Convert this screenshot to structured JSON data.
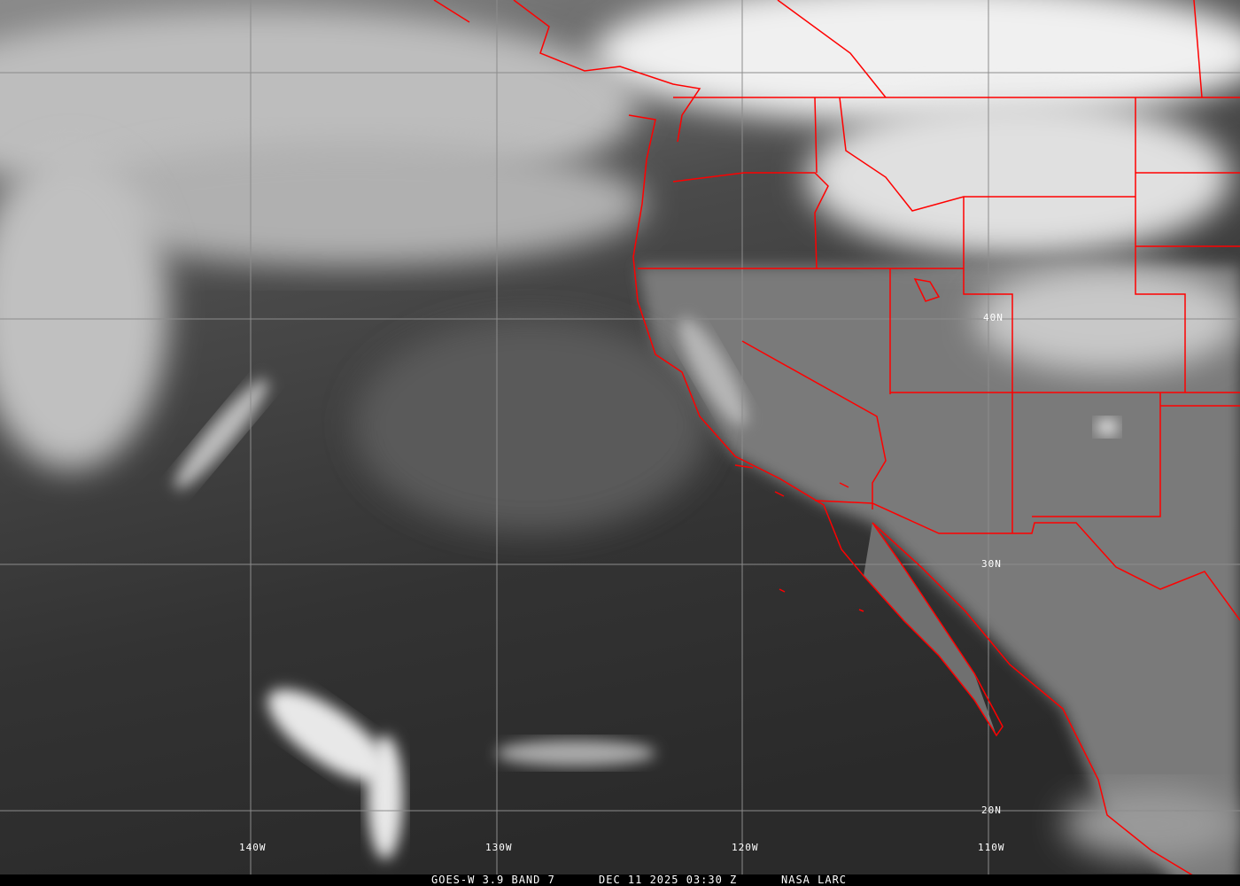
{
  "image": {
    "satellite": "GOES-W 3.9 BAND 7",
    "datetime": "DEC 11 2025 03:30 Z",
    "source": "NASA LARC"
  },
  "grid": {
    "latitude_labels": [
      "40N",
      "30N",
      "20N"
    ],
    "longitude_labels": [
      "140W",
      "130W",
      "120W",
      "110W"
    ]
  },
  "colors": {
    "boundaries": "#ff0000",
    "grid": "#8c8c8c",
    "caption_bg": "#000000",
    "caption_text": "#ffffff"
  }
}
